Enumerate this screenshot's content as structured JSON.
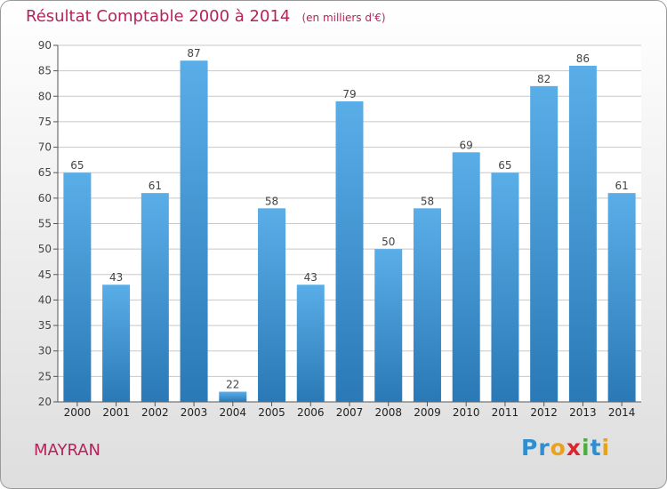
{
  "header": {
    "title": "Résultat Comptable 2000 à 2014",
    "unit": "(en milliers d'€)"
  },
  "footer": {
    "commune": "MAYRAN",
    "logo_letters": [
      {
        "ch": "P",
        "color": "#2f8ed0"
      },
      {
        "ch": "r",
        "color": "#2f8ed0"
      },
      {
        "ch": "o",
        "color": "#e8a21c"
      },
      {
        "ch": "x",
        "color": "#d9262f"
      },
      {
        "ch": "i",
        "color": "#4caf3c"
      },
      {
        "ch": "t",
        "color": "#2f8ed0"
      },
      {
        "ch": "i",
        "color": "#e8a21c"
      }
    ]
  },
  "colors": {
    "title": "#b5235b",
    "bar_top": "#5aaee8",
    "bar_bottom": "#2a79b6",
    "grid": "#c8c8c8"
  },
  "chart_data": {
    "type": "bar",
    "categories": [
      "2000",
      "2001",
      "2002",
      "2003",
      "2004",
      "2005",
      "2006",
      "2007",
      "2008",
      "2009",
      "2010",
      "2011",
      "2012",
      "2013",
      "2014"
    ],
    "values": [
      65,
      43,
      61,
      87,
      22,
      58,
      43,
      79,
      50,
      58,
      69,
      65,
      82,
      86,
      61
    ],
    "ylim": [
      20,
      90
    ],
    "yticks": [
      20,
      25,
      30,
      35,
      40,
      45,
      50,
      55,
      60,
      65,
      70,
      75,
      80,
      85,
      90
    ],
    "grid": true,
    "data_labels": true
  }
}
